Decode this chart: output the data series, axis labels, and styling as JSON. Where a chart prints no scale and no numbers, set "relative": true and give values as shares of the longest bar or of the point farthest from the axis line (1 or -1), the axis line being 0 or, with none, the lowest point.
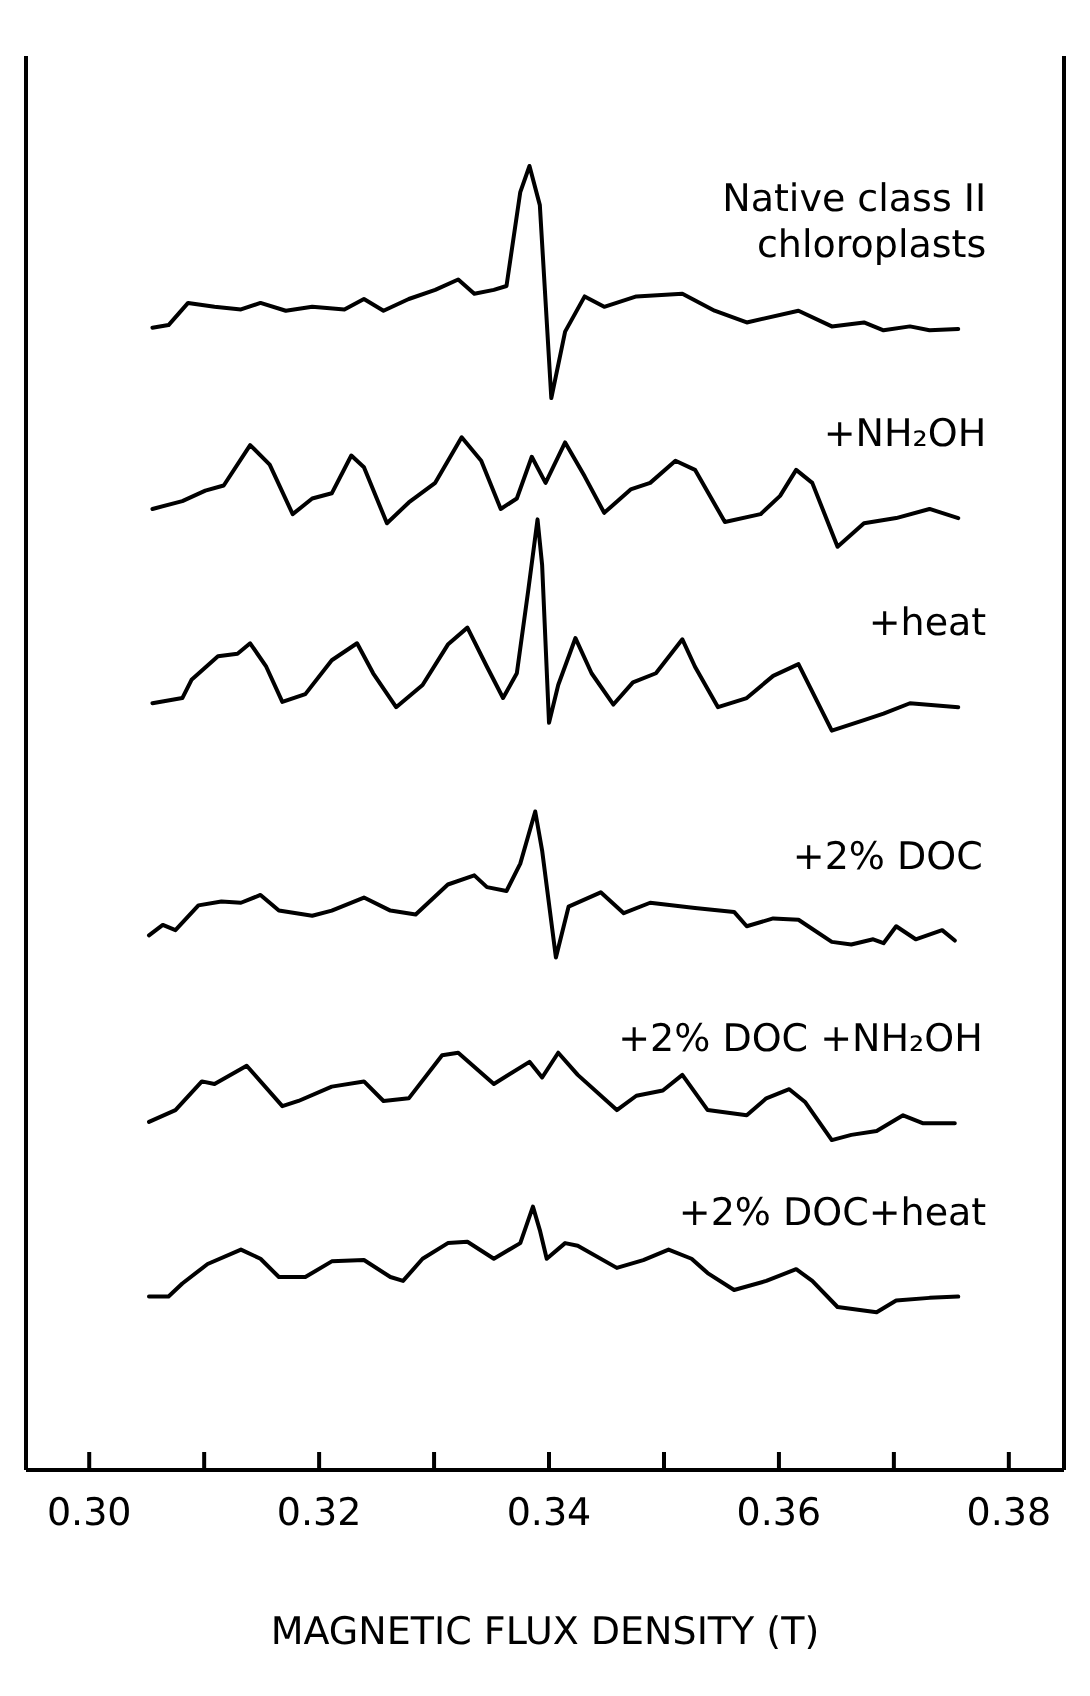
{
  "chart_data": {
    "type": "line",
    "relative": true,
    "xlabel": "MAGNETIC FLUX DENSITY (T)",
    "xlim": [
      0.2945,
      0.3848
    ],
    "xticks": [
      {
        "value": 0.3,
        "label": "0.30"
      },
      {
        "value": 0.31,
        "label": null
      },
      {
        "value": 0.32,
        "label": "0.32"
      },
      {
        "value": 0.33,
        "label": null
      },
      {
        "value": 0.34,
        "label": "0.34"
      },
      {
        "value": 0.35,
        "label": null
      },
      {
        "value": 0.36,
        "label": "0.36"
      },
      {
        "value": 0.37,
        "label": null
      },
      {
        "value": 0.38,
        "label": "0.38"
      }
    ],
    "marker": "none",
    "line_style": "solid",
    "series": [
      {
        "name": "Native class II chloroplasts",
        "color": "#000000",
        "x": [
          0.3055,
          0.3069,
          0.3086,
          0.3109,
          0.3132,
          0.3149,
          0.3171,
          0.3194,
          0.3222,
          0.3239,
          0.3256,
          0.3278,
          0.3301,
          0.3321,
          0.3335,
          0.3352,
          0.3363,
          0.3375,
          0.3383,
          0.3392,
          0.3402,
          0.3414,
          0.3431,
          0.3448,
          0.3476,
          0.3516,
          0.3544,
          0.3572,
          0.3617,
          0.3646,
          0.3674,
          0.3691,
          0.3714,
          0.3731,
          0.3756
        ],
        "values": [
          0.876,
          0.878,
          0.895,
          0.892,
          0.89,
          0.895,
          0.889,
          0.892,
          0.89,
          0.898,
          0.889,
          0.898,
          0.905,
          0.913,
          0.902,
          0.905,
          0.908,
          0.98,
          1.0,
          0.97,
          0.822,
          0.873,
          0.9,
          0.892,
          0.9,
          0.902,
          0.889,
          0.88,
          0.889,
          0.877,
          0.88,
          0.874,
          0.877,
          0.874,
          0.875
        ]
      },
      {
        "name": "+NH₂OH",
        "color": "#000000",
        "x": [
          0.3055,
          0.3081,
          0.3101,
          0.3117,
          0.314,
          0.3157,
          0.3177,
          0.3194,
          0.3211,
          0.3228,
          0.3239,
          0.3259,
          0.3278,
          0.3301,
          0.3324,
          0.3341,
          0.3358,
          0.3372,
          0.3385,
          0.3397,
          0.3414,
          0.3431,
          0.3448,
          0.3471,
          0.3488,
          0.351,
          0.3527,
          0.3553,
          0.3584,
          0.3601,
          0.3615,
          0.3629,
          0.3651,
          0.3674,
          0.3702,
          0.3731,
          0.3756
        ],
        "values": [
          0.737,
          0.743,
          0.751,
          0.755,
          0.786,
          0.771,
          0.733,
          0.745,
          0.749,
          0.778,
          0.769,
          0.726,
          0.742,
          0.757,
          0.792,
          0.774,
          0.737,
          0.745,
          0.777,
          0.757,
          0.788,
          0.762,
          0.734,
          0.752,
          0.757,
          0.774,
          0.767,
          0.727,
          0.733,
          0.747,
          0.767,
          0.757,
          0.708,
          0.726,
          0.73,
          0.737,
          0.73
        ]
      },
      {
        "name": "+heat",
        "color": "#000000",
        "x": [
          0.3055,
          0.3081,
          0.3089,
          0.3112,
          0.3129,
          0.314,
          0.3154,
          0.3168,
          0.3188,
          0.3211,
          0.3233,
          0.3247,
          0.3267,
          0.329,
          0.3312,
          0.3329,
          0.3346,
          0.336,
          0.3372,
          0.3382,
          0.339,
          0.3394,
          0.34,
          0.3408,
          0.3423,
          0.3437,
          0.3456,
          0.3473,
          0.3493,
          0.3516,
          0.3527,
          0.3547,
          0.3572,
          0.3595,
          0.3617,
          0.3646,
          0.3674,
          0.3691,
          0.3714,
          0.3756
        ],
        "values": [
          0.588,
          0.592,
          0.606,
          0.624,
          0.626,
          0.634,
          0.616,
          0.589,
          0.595,
          0.621,
          0.634,
          0.611,
          0.585,
          0.602,
          0.633,
          0.646,
          0.616,
          0.592,
          0.611,
          0.675,
          0.729,
          0.694,
          0.573,
          0.602,
          0.638,
          0.611,
          0.587,
          0.604,
          0.611,
          0.637,
          0.616,
          0.585,
          0.592,
          0.609,
          0.618,
          0.567,
          0.575,
          0.58,
          0.588,
          0.585
        ]
      },
      {
        "name": "+2% DOC",
        "color": "#000000",
        "x": [
          0.3052,
          0.3064,
          0.3075,
          0.3095,
          0.3115,
          0.3132,
          0.3149,
          0.3165,
          0.3194,
          0.3211,
          0.3239,
          0.3262,
          0.3284,
          0.3312,
          0.3335,
          0.3346,
          0.3363,
          0.3375,
          0.3388,
          0.3394,
          0.3406,
          0.3417,
          0.3445,
          0.3465,
          0.3488,
          0.3527,
          0.3561,
          0.3572,
          0.3595,
          0.3617,
          0.3646,
          0.3663,
          0.3682,
          0.3691,
          0.3702,
          0.3719,
          0.3742,
          0.3753
        ],
        "values": [
          0.41,
          0.418,
          0.414,
          0.433,
          0.436,
          0.435,
          0.441,
          0.429,
          0.425,
          0.429,
          0.439,
          0.429,
          0.426,
          0.449,
          0.456,
          0.447,
          0.444,
          0.465,
          0.505,
          0.475,
          0.393,
          0.432,
          0.443,
          0.427,
          0.435,
          0.431,
          0.428,
          0.417,
          0.423,
          0.422,
          0.405,
          0.403,
          0.407,
          0.404,
          0.417,
          0.407,
          0.414,
          0.406
        ]
      },
      {
        "name": "+2% DOC +NH₂OH",
        "color": "#000000",
        "x": [
          0.3052,
          0.3075,
          0.3098,
          0.3109,
          0.3137,
          0.3168,
          0.3182,
          0.3211,
          0.3239,
          0.3256,
          0.3278,
          0.3307,
          0.3321,
          0.3352,
          0.3383,
          0.3394,
          0.3408,
          0.3425,
          0.3459,
          0.3476,
          0.3499,
          0.3516,
          0.3538,
          0.3572,
          0.3589,
          0.3609,
          0.3623,
          0.3646,
          0.3663,
          0.3685,
          0.3708,
          0.3725,
          0.3753
        ],
        "values": [
          0.267,
          0.276,
          0.298,
          0.296,
          0.31,
          0.279,
          0.283,
          0.294,
          0.298,
          0.283,
          0.285,
          0.318,
          0.32,
          0.296,
          0.313,
          0.301,
          0.32,
          0.303,
          0.276,
          0.287,
          0.291,
          0.303,
          0.276,
          0.272,
          0.285,
          0.292,
          0.282,
          0.253,
          0.257,
          0.26,
          0.272,
          0.266,
          0.266
        ]
      },
      {
        "name": "+2% DOC+heat",
        "color": "#000000",
        "x": [
          0.3052,
          0.3069,
          0.3081,
          0.3103,
          0.3132,
          0.3149,
          0.3165,
          0.3188,
          0.3211,
          0.3239,
          0.3262,
          0.3273,
          0.329,
          0.3312,
          0.3329,
          0.3352,
          0.3375,
          0.3386,
          0.3392,
          0.3398,
          0.3414,
          0.3425,
          0.3459,
          0.3482,
          0.3504,
          0.3524,
          0.3538,
          0.3561,
          0.3589,
          0.3615,
          0.3629,
          0.3651,
          0.3685,
          0.3702,
          0.3731,
          0.3756
        ],
        "values": [
          0.133,
          0.133,
          0.143,
          0.158,
          0.169,
          0.162,
          0.148,
          0.148,
          0.16,
          0.161,
          0.148,
          0.145,
          0.162,
          0.174,
          0.175,
          0.162,
          0.174,
          0.202,
          0.184,
          0.162,
          0.174,
          0.172,
          0.155,
          0.161,
          0.169,
          0.162,
          0.151,
          0.138,
          0.145,
          0.154,
          0.145,
          0.125,
          0.121,
          0.13,
          0.132,
          0.133
        ]
      }
    ]
  }
}
